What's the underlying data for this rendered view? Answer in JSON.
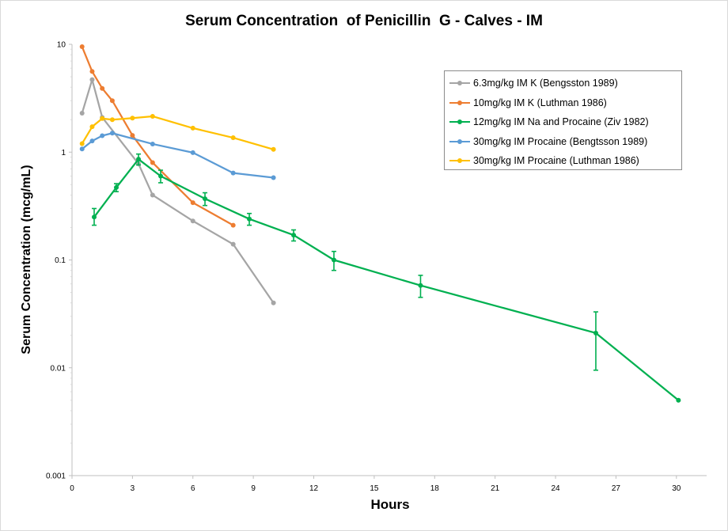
{
  "chart_data": {
    "type": "line",
    "title": "Serum Concentration  of Penicillin  G - Calves - IM",
    "xlabel": "Hours",
    "ylabel": "Serum Concentration (mcg/mL)",
    "xlim": [
      0,
      31.5
    ],
    "ylim": [
      0.001,
      10
    ],
    "y_scale": "log",
    "x_ticks": [
      0,
      3,
      6,
      9,
      12,
      15,
      18,
      21,
      24,
      27,
      30
    ],
    "y_ticks": [
      0.001,
      0.01,
      0.1,
      1,
      10
    ],
    "y_tick_labels": [
      "0.001",
      "0.01",
      "0.1",
      "1",
      "10"
    ],
    "grid": false,
    "legend_position": "top-right",
    "series": [
      {
        "name": "6.3mg/kg IM  K (Bengsston 1989)",
        "color": "#a5a5a5",
        "x": [
          0.5,
          1,
          1.5,
          3.3,
          4,
          6,
          8,
          10
        ],
        "y": [
          2.3,
          4.7,
          2.1,
          0.78,
          0.4,
          0.23,
          0.14,
          0.04
        ]
      },
      {
        "name": "10mg/kg IM  K (Luthman 1986)",
        "color": "#ed7d31",
        "x": [
          0.5,
          1,
          1.5,
          2,
          3,
          4,
          6,
          8
        ],
        "y": [
          9.5,
          5.6,
          3.9,
          3.0,
          1.43,
          0.8,
          0.34,
          0.21
        ]
      },
      {
        "name": "12mg/kg IM  Na and Procaine (Ziv 1982)",
        "color": "#00b050",
        "x": [
          1.1,
          2.2,
          3.3,
          4.4,
          6.6,
          8.8,
          11,
          13,
          17.3,
          26,
          30.1
        ],
        "y": [
          0.25,
          0.47,
          0.86,
          0.6,
          0.37,
          0.24,
          0.17,
          0.1,
          0.058,
          0.021,
          0.005
        ],
        "err_low": [
          0.21,
          0.43,
          0.76,
          0.52,
          0.32,
          0.21,
          0.15,
          0.08,
          0.045,
          0.0095,
          0.005
        ],
        "err_high": [
          0.3,
          0.51,
          0.96,
          0.68,
          0.42,
          0.27,
          0.19,
          0.12,
          0.072,
          0.033,
          0.005
        ]
      },
      {
        "name": "30mg/kg IM  Procaine (Bengtsson 1989)",
        "color": "#5b9bd5",
        "x": [
          0.5,
          1,
          1.5,
          2,
          4,
          6,
          8,
          10
        ],
        "y": [
          1.07,
          1.27,
          1.42,
          1.5,
          1.19,
          0.99,
          0.64,
          0.58
        ]
      },
      {
        "name": "30mg/kg IM  Procaine (Luthman 1986)",
        "color": "#ffc000",
        "x": [
          0.5,
          1,
          1.5,
          2,
          3,
          4,
          6,
          8,
          10
        ],
        "y": [
          1.2,
          1.72,
          2.05,
          2.0,
          2.07,
          2.15,
          1.67,
          1.36,
          1.06
        ]
      }
    ]
  }
}
